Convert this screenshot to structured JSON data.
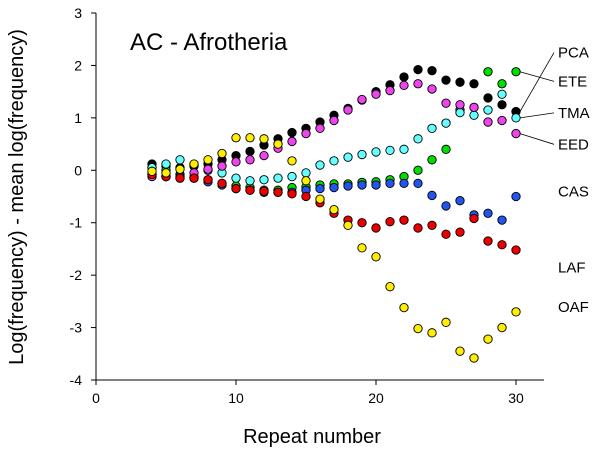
{
  "chart_data": {
    "type": "scatter",
    "title": "AC - Afrotheria",
    "xlabel": "Repeat number",
    "ylabel": "Log(frequency) - mean log(frequency)",
    "xlim": [
      0,
      32
    ],
    "ylim": [
      -4,
      3
    ],
    "xticks": [
      0,
      10,
      20,
      30
    ],
    "yticks": [
      -4,
      -3,
      -2,
      -1,
      0,
      1,
      2,
      3
    ],
    "grid": false,
    "legend": "direct labels at right end of each series",
    "series": [
      {
        "name": "PCA",
        "color": "#000000",
        "x": [
          4,
          5,
          6,
          7,
          8,
          9,
          10,
          11,
          12,
          13,
          14,
          15,
          16,
          17,
          18,
          19,
          20,
          21,
          22,
          23,
          24,
          25,
          26,
          27,
          28,
          29,
          30
        ],
        "y": [
          0.12,
          0.08,
          0.05,
          0.08,
          0.12,
          0.2,
          0.28,
          0.36,
          0.48,
          0.6,
          0.72,
          0.8,
          0.92,
          1.05,
          1.18,
          1.34,
          1.5,
          1.63,
          1.78,
          1.92,
          1.9,
          1.72,
          1.68,
          1.65,
          1.38,
          1.25,
          1.12
        ]
      },
      {
        "name": "ETE",
        "color": "#00dd00",
        "x": [
          4,
          5,
          6,
          7,
          8,
          9,
          10,
          11,
          12,
          13,
          14,
          15,
          16,
          17,
          18,
          19,
          20,
          21,
          22,
          23,
          24,
          25,
          26,
          27,
          28,
          29,
          30
        ],
        "y": [
          0.05,
          0.0,
          -0.08,
          -0.13,
          -0.18,
          -0.25,
          -0.3,
          -0.33,
          -0.38,
          -0.38,
          -0.33,
          -0.32,
          -0.28,
          -0.26,
          -0.26,
          -0.23,
          -0.22,
          -0.18,
          -0.12,
          0.0,
          0.2,
          0.4,
          1.15,
          1.2,
          1.88,
          1.65,
          1.88
        ]
      },
      {
        "name": "TMA",
        "color": "#66ffff",
        "x": [
          4,
          5,
          6,
          7,
          8,
          9,
          10,
          11,
          12,
          13,
          14,
          15,
          16,
          17,
          18,
          19,
          20,
          21,
          22,
          23,
          24,
          25,
          26,
          27,
          28,
          29,
          30
        ],
        "y": [
          0.05,
          0.12,
          0.2,
          0.1,
          0.0,
          -0.05,
          -0.15,
          -0.2,
          -0.18,
          -0.15,
          -0.12,
          -0.05,
          0.1,
          0.18,
          0.25,
          0.3,
          0.35,
          0.38,
          0.4,
          0.6,
          0.8,
          0.9,
          1.1,
          1.05,
          1.15,
          1.45,
          1.0
        ]
      },
      {
        "name": "EED",
        "color": "#ee44ee",
        "x": [
          4,
          5,
          6,
          7,
          8,
          9,
          10,
          11,
          12,
          13,
          14,
          15,
          16,
          17,
          18,
          19,
          20,
          21,
          22,
          23,
          24,
          25,
          26,
          27,
          28,
          29,
          30
        ],
        "y": [
          -0.12,
          -0.12,
          -0.15,
          -0.05,
          0.02,
          0.08,
          0.16,
          0.2,
          0.28,
          0.42,
          0.55,
          0.7,
          0.8,
          0.95,
          1.15,
          1.35,
          1.45,
          1.52,
          1.62,
          1.65,
          1.55,
          1.28,
          1.25,
          1.2,
          0.92,
          0.95,
          0.7
        ]
      },
      {
        "name": "CAS",
        "color": "#2255ee",
        "x": [
          4,
          5,
          6,
          7,
          8,
          9,
          10,
          11,
          12,
          13,
          14,
          15,
          16,
          17,
          18,
          19,
          20,
          21,
          22,
          23,
          24,
          25,
          26,
          27,
          28,
          29,
          30
        ],
        "y": [
          -0.08,
          -0.12,
          -0.12,
          -0.15,
          -0.22,
          -0.28,
          -0.35,
          -0.38,
          -0.42,
          -0.42,
          -0.42,
          -0.38,
          -0.35,
          -0.33,
          -0.3,
          -0.28,
          -0.28,
          -0.25,
          -0.25,
          -0.25,
          -0.48,
          -0.68,
          -0.58,
          -0.85,
          -0.82,
          -0.95,
          -0.5
        ]
      },
      {
        "name": "LAF",
        "color": "#ee0000",
        "x": [
          4,
          5,
          6,
          7,
          8,
          9,
          10,
          11,
          12,
          13,
          14,
          15,
          16,
          17,
          18,
          19,
          20,
          21,
          22,
          23,
          24,
          25,
          26,
          27,
          28,
          29,
          30
        ],
        "y": [
          -0.08,
          -0.12,
          -0.15,
          -0.15,
          -0.18,
          -0.25,
          -0.35,
          -0.38,
          -0.4,
          -0.42,
          -0.45,
          -0.5,
          -0.62,
          -0.82,
          -0.95,
          -1.0,
          -1.1,
          -0.98,
          -0.95,
          -1.1,
          -1.05,
          -1.22,
          -1.18,
          -0.92,
          -1.35,
          -1.42,
          -1.52
        ]
      },
      {
        "name": "OAF",
        "color": "#ffee00",
        "x": [
          4,
          5,
          6,
          7,
          8,
          9,
          10,
          11,
          12,
          13,
          14,
          15,
          16,
          17,
          18,
          19,
          20,
          21,
          22,
          23,
          24,
          25,
          26,
          27,
          28,
          29,
          30
        ],
        "y": [
          -0.02,
          -0.05,
          0.02,
          0.12,
          0.2,
          0.32,
          0.62,
          0.62,
          0.6,
          0.5,
          0.18,
          -0.2,
          -0.55,
          -0.75,
          -1.05,
          -1.48,
          -1.65,
          -2.22,
          -2.62,
          -3.02,
          -3.1,
          -2.9,
          -3.45,
          -3.58,
          -3.22,
          -3.0,
          -2.7
        ]
      }
    ]
  }
}
